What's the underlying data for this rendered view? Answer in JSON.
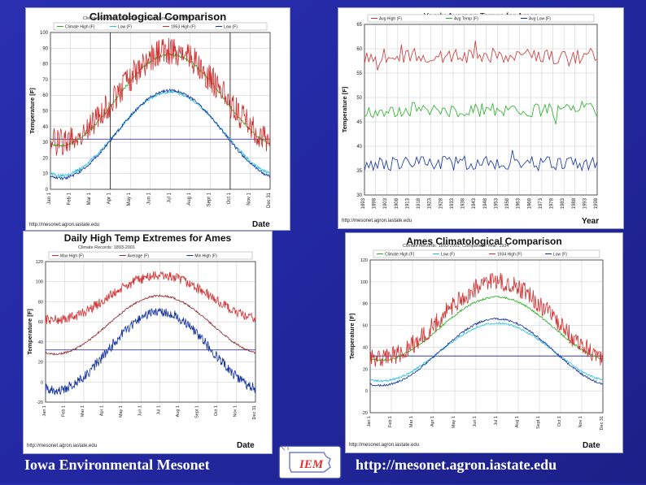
{
  "footer": {
    "left_text": "Iowa Environmental Mesonet",
    "right_text": "http://mesonet.agron.iastate.edu",
    "logo_text": "IEM"
  },
  "chart_data": [
    {
      "type": "line",
      "title": "Climatological Comparison",
      "subtitle": "Climate Records: 1893-2001; Comparison Year: 1953",
      "xlabel": "Date",
      "ylabel": "Temperature [F]",
      "source": "http://mesonet.agron.iastate.edu",
      "x_ticks": [
        "Jan 1",
        "Feb 1",
        "Mar 1",
        "Apr 1",
        "May 1",
        "Jun 1",
        "Jul 1",
        "Aug 1",
        "Sept 1",
        "Oct 1",
        "Nov 1",
        "Dec 31"
      ],
      "ylim": [
        0,
        100
      ],
      "y_ticks": [
        0,
        10,
        20,
        30,
        40,
        50,
        60,
        70,
        80,
        90,
        100
      ],
      "grid": true,
      "hline": 32,
      "vlines": [
        3,
        9
      ],
      "series": [
        {
          "name": "Climate High (F)",
          "color": "#20b020",
          "lo": 28,
          "hi": 86
        },
        {
          "name": "Low (F)",
          "color": "#20c0e0",
          "lo": 9,
          "hi": 62
        },
        {
          "name": "1953 High (F)",
          "color": "#d03030",
          "lo": 30,
          "hi": 88
        },
        {
          "name": "Low (F)",
          "color": "#1030a0",
          "lo": 7,
          "hi": 63
        }
      ]
    },
    {
      "type": "line",
      "title": "Yearly Average Temps for Ames",
      "xlabel": "Year",
      "ylabel": "Temperature [F]",
      "source": "http://mesonet.agron.iastate.edu",
      "x_ticks": [
        "1893",
        "1898",
        "1903",
        "1908",
        "1913",
        "1918",
        "1923",
        "1928",
        "1933",
        "1938",
        "1943",
        "1948",
        "1953",
        "1958",
        "1963",
        "1968",
        "1973",
        "1978",
        "1983",
        "1988",
        "1993",
        "1998"
      ],
      "ylim": [
        30,
        65
      ],
      "y_ticks": [
        30,
        35,
        40,
        45,
        50,
        55,
        60,
        65
      ],
      "grid": true,
      "series": [
        {
          "name": "Avg High (F)",
          "color": "#d03030",
          "mean": 58.5,
          "amp": 1.6
        },
        {
          "name": "Avg Temp (F)",
          "color": "#20b020",
          "mean": 47.5,
          "amp": 1.5
        },
        {
          "name": "Avg Low (F)",
          "color": "#1030a0",
          "mean": 36.5,
          "amp": 1.5
        }
      ]
    },
    {
      "type": "line",
      "title": "Daily High Temp Extremes for Ames",
      "subtitle": "Climate Records: 1893-2001",
      "xlabel": "Date",
      "ylabel": "Temperature [F]",
      "source": "http://mesonet.agron.iastate.edu",
      "x_ticks": [
        "Jan 1",
        "Feb 1",
        "Mar 1",
        "Apr 1",
        "May 1",
        "Jun 1",
        "Jul 1",
        "Aug 1",
        "Sept 1",
        "Oct 1",
        "Nov 1",
        "Dec 31"
      ],
      "ylim": [
        -20,
        120
      ],
      "y_ticks": [
        -20,
        0,
        20,
        40,
        60,
        80,
        100,
        120
      ],
      "grid": true,
      "hline": 32,
      "series": [
        {
          "name": "Max High (F)",
          "color": "#d03030",
          "lo": 62,
          "hi": 106
        },
        {
          "name": "Average (F)",
          "color": "#902828",
          "lo": 28,
          "hi": 86
        },
        {
          "name": "Min High (F)",
          "color": "#1030a0",
          "lo": -8,
          "hi": 70
        }
      ]
    },
    {
      "type": "line",
      "title": "Ames Climatological Comparison",
      "subtitle": "Climate Records: 1893-2001; Comparison Year: 1934",
      "xlabel": "Date",
      "ylabel": "Temperature [F]",
      "source": "http://mesonet.agron.iastate.edu",
      "x_ticks": [
        "Jan 1",
        "Feb 1",
        "Mar 1",
        "Apr 1",
        "May 1",
        "Jun 1",
        "Jul 1",
        "Aug 1",
        "Sept 1",
        "Oct 1",
        "Nov 1",
        "Dec 31"
      ],
      "ylim": [
        -20,
        120
      ],
      "y_ticks": [
        -20,
        0,
        20,
        40,
        60,
        80,
        100,
        120
      ],
      "grid": true,
      "hline": 32,
      "series": [
        {
          "name": "Climate High (F)",
          "color": "#20b020",
          "lo": 28,
          "hi": 86
        },
        {
          "name": "Low (F)",
          "color": "#20c0e0",
          "lo": 9,
          "hi": 62
        },
        {
          "name": "1934 High (F)",
          "color": "#d03030",
          "lo": 30,
          "hi": 100
        },
        {
          "name": "Low (F)",
          "color": "#1030a0",
          "lo": 5,
          "hi": 66
        }
      ]
    }
  ]
}
